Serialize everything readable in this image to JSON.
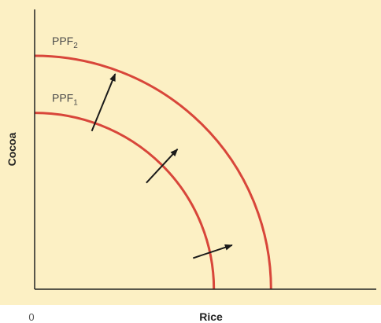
{
  "colors": {
    "background": "#fcf0c4",
    "curve": "#d8463a",
    "axis": "#222222",
    "arrow": "#1a1a1a"
  },
  "chart_data": {
    "type": "line",
    "title": "",
    "xlabel": "Rice",
    "ylabel": "Cocoa",
    "origin_label": "0",
    "xlim": [
      0,
      10
    ],
    "ylim": [
      0,
      10
    ],
    "grid": false,
    "series": [
      {
        "name": "PPF",
        "subscript": "1",
        "shape": "quarter-circle",
        "x_intercept": 6.9,
        "y_intercept": 6.8
      },
      {
        "name": "PPF",
        "subscript": "2",
        "shape": "quarter-circle",
        "x_intercept": 9.1,
        "y_intercept": 9.0
      }
    ],
    "annotations": [
      {
        "type": "arrow",
        "from": [
          2.2,
          6.1
        ],
        "to": [
          3.1,
          8.3
        ]
      },
      {
        "type": "arrow",
        "from": [
          4.3,
          4.1
        ],
        "to": [
          5.5,
          5.4
        ]
      },
      {
        "type": "arrow",
        "from": [
          6.1,
          1.2
        ],
        "to": [
          7.6,
          1.7
        ]
      }
    ]
  }
}
